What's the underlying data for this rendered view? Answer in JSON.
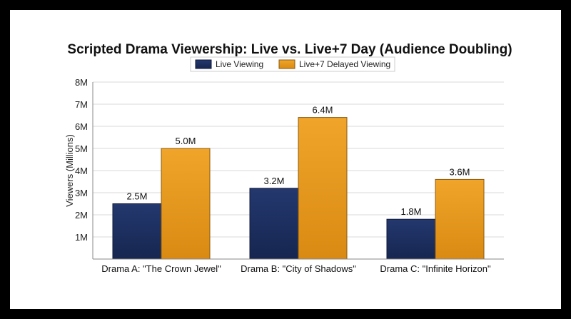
{
  "chart_data": {
    "type": "bar",
    "title": "Scripted Drama Viewership: Live vs. Live+7 Day (Audience Doubling)",
    "xlabel": "",
    "ylabel": "Viewers (Millions)",
    "ylim": [
      0,
      8
    ],
    "yticks": [
      "1M",
      "2M",
      "3M",
      "4M",
      "5M",
      "6M",
      "7M",
      "8M"
    ],
    "grid": "horizontal",
    "legend_position": "top-center",
    "categories": [
      "Drama A: \"The Crown Jewel\"",
      "Drama B: \"City of Shadows\"",
      "Drama C: \"Infinite Horizon\""
    ],
    "series": [
      {
        "name": "Live Viewing",
        "values": [
          2.5,
          3.2,
          1.8
        ],
        "labels": [
          "2.5M",
          "3.2M",
          "1.8M"
        ],
        "color": "#1e2f62"
      },
      {
        "name": "Live+7 Delayed Viewing",
        "values": [
          5.0,
          6.4,
          3.6
        ],
        "labels": [
          "5.0M",
          "6.4M",
          "3.6M"
        ],
        "color": "#e89b1c"
      }
    ]
  }
}
